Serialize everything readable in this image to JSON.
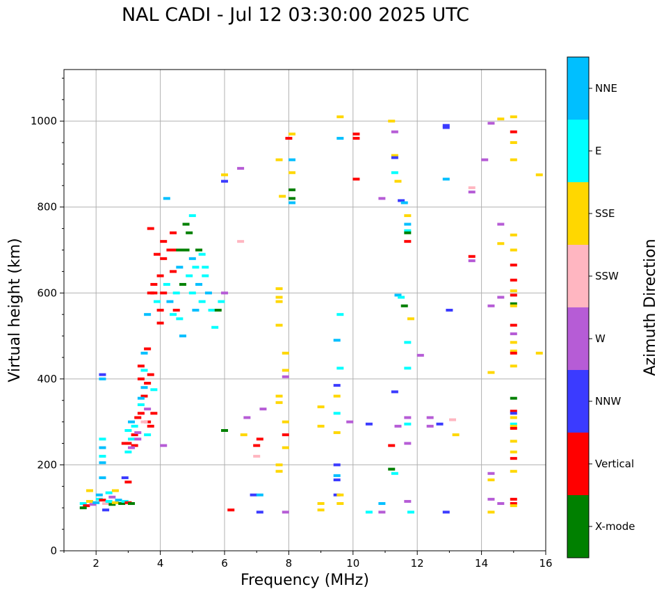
{
  "chart_data": {
    "type": "scatter",
    "title": "NAL CADI - Jul 12 03:30:00 2025 UTC",
    "xlabel": "Frequency (MHz)",
    "ylabel": "Virtual height (km)",
    "xlim": [
      1,
      16
    ],
    "ylim": [
      0,
      1120
    ],
    "xticks": [
      2,
      4,
      6,
      8,
      10,
      12,
      14,
      16
    ],
    "yticks": [
      0,
      200,
      400,
      600,
      800,
      1000
    ],
    "grid": true,
    "colorbar": {
      "title": "Azimuth Direction",
      "categories": [
        {
          "name": "X-mode",
          "color": "#008000"
        },
        {
          "name": "Vertical",
          "color": "#ff0000"
        },
        {
          "name": "NNW",
          "color": "#3b3bff"
        },
        {
          "name": "W",
          "color": "#b65cd6"
        },
        {
          "name": "SSW",
          "color": "#ffb6c1"
        },
        {
          "name": "SSE",
          "color": "#ffd700"
        },
        {
          "name": "E",
          "color": "#00ffff"
        },
        {
          "name": "NNE",
          "color": "#00bfff"
        }
      ]
    },
    "points": [
      [
        1.6,
        110,
        "E"
      ],
      [
        1.7,
        105,
        "Vertical"
      ],
      [
        1.8,
        115,
        "SSE"
      ],
      [
        1.9,
        108,
        "W"
      ],
      [
        2.0,
        112,
        "NNE"
      ],
      [
        2.1,
        120,
        "E"
      ],
      [
        2.2,
        118,
        "Vertical"
      ],
      [
        2.3,
        110,
        "SSW"
      ],
      [
        2.4,
        115,
        "E"
      ],
      [
        2.5,
        108,
        "X-mode"
      ],
      [
        2.6,
        112,
        "SSE"
      ],
      [
        2.7,
        118,
        "NNE"
      ],
      [
        2.8,
        110,
        "X-mode"
      ],
      [
        2.9,
        115,
        "E"
      ],
      [
        3.0,
        112,
        "Vertical"
      ],
      [
        3.1,
        110,
        "X-mode"
      ],
      [
        1.6,
        100,
        "X-mode"
      ],
      [
        1.8,
        140,
        "SSE"
      ],
      [
        2.1,
        130,
        "NNE"
      ],
      [
        2.4,
        135,
        "E"
      ],
      [
        2.6,
        140,
        "SSE"
      ],
      [
        2.9,
        170,
        "NNW"
      ],
      [
        3.0,
        160,
        "Vertical"
      ],
      [
        2.2,
        170,
        "NNE"
      ],
      [
        2.3,
        95,
        "NNW"
      ],
      [
        2.5,
        125,
        "W"
      ],
      [
        2.2,
        220,
        "E"
      ],
      [
        2.2,
        240,
        "NNE"
      ],
      [
        2.2,
        260,
        "E"
      ],
      [
        2.2,
        400,
        "NNE"
      ],
      [
        2.2,
        410,
        "NNW"
      ],
      [
        2.2,
        205,
        "NNE"
      ],
      [
        3.0,
        250,
        "Vertical"
      ],
      [
        3.0,
        280,
        "E"
      ],
      [
        3.1,
        260,
        "E"
      ],
      [
        3.1,
        300,
        "NNE"
      ],
      [
        3.2,
        270,
        "Vertical"
      ],
      [
        3.2,
        290,
        "E"
      ],
      [
        3.3,
        310,
        "Vertical"
      ],
      [
        3.3,
        260,
        "W"
      ],
      [
        3.4,
        320,
        "Vertical"
      ],
      [
        3.4,
        340,
        "E"
      ],
      [
        3.5,
        360,
        "Vertical"
      ],
      [
        3.5,
        380,
        "NNE"
      ],
      [
        3.4,
        400,
        "Vertical"
      ],
      [
        3.5,
        420,
        "E"
      ],
      [
        3.4,
        430,
        "Vertical"
      ],
      [
        3.5,
        460,
        "NNE"
      ],
      [
        3.6,
        470,
        "Vertical"
      ],
      [
        3.6,
        300,
        "Vertical"
      ],
      [
        3.7,
        290,
        "Vertical"
      ],
      [
        3.8,
        320,
        "Vertical"
      ],
      [
        3.6,
        270,
        "E"
      ],
      [
        3.2,
        245,
        "Vertical"
      ],
      [
        3.3,
        275,
        "W"
      ],
      [
        3.1,
        240,
        "W"
      ],
      [
        2.9,
        250,
        "Vertical"
      ],
      [
        3.0,
        230,
        "E"
      ],
      [
        3.5,
        300,
        "SSW"
      ],
      [
        3.6,
        330,
        "W"
      ],
      [
        3.4,
        355,
        "NNE"
      ],
      [
        3.6,
        390,
        "Vertical"
      ],
      [
        3.7,
        410,
        "Vertical"
      ],
      [
        3.8,
        375,
        "E"
      ],
      [
        4.1,
        245,
        "W"
      ],
      [
        3.6,
        550,
        "NNE"
      ],
      [
        3.7,
        600,
        "Vertical"
      ],
      [
        3.8,
        620,
        "Vertical"
      ],
      [
        3.9,
        580,
        "E"
      ],
      [
        4.0,
        560,
        "Vertical"
      ],
      [
        4.0,
        640,
        "Vertical"
      ],
      [
        4.1,
        600,
        "Vertical"
      ],
      [
        4.1,
        680,
        "Vertical"
      ],
      [
        4.2,
        620,
        "E"
      ],
      [
        4.3,
        580,
        "NNE"
      ],
      [
        4.4,
        650,
        "Vertical"
      ],
      [
        4.5,
        700,
        "Vertical"
      ],
      [
        4.5,
        600,
        "E"
      ],
      [
        4.6,
        660,
        "NNE"
      ],
      [
        4.7,
        620,
        "X-mode"
      ],
      [
        4.8,
        700,
        "X-mode"
      ],
      [
        4.9,
        640,
        "E"
      ],
      [
        5.0,
        680,
        "NNE"
      ],
      [
        5.0,
        600,
        "E"
      ],
      [
        5.1,
        660,
        "E"
      ],
      [
        5.2,
        620,
        "NNE"
      ],
      [
        5.3,
        580,
        "E"
      ],
      [
        5.4,
        640,
        "E"
      ],
      [
        5.5,
        600,
        "NNE"
      ],
      [
        5.6,
        560,
        "E"
      ],
      [
        5.7,
        520,
        "E"
      ],
      [
        4.8,
        760,
        "X-mode"
      ],
      [
        4.9,
        740,
        "X-mode"
      ],
      [
        5.0,
        780,
        "E"
      ],
      [
        4.6,
        540,
        "E"
      ],
      [
        4.7,
        500,
        "NNE"
      ],
      [
        3.7,
        750,
        "Vertical"
      ],
      [
        4.1,
        720,
        "Vertical"
      ],
      [
        4.2,
        820,
        "NNE"
      ],
      [
        4.4,
        740,
        "Vertical"
      ],
      [
        3.9,
        690,
        "Vertical"
      ],
      [
        4.0,
        530,
        "Vertical"
      ],
      [
        4.3,
        700,
        "Vertical"
      ],
      [
        4.6,
        700,
        "X-mode"
      ],
      [
        4.5,
        560,
        "Vertical"
      ],
      [
        5.2,
        700,
        "X-mode"
      ],
      [
        5.3,
        690,
        "E"
      ],
      [
        5.4,
        660,
        "E"
      ],
      [
        5.1,
        560,
        "NNE"
      ],
      [
        5.8,
        560,
        "X-mode"
      ],
      [
        5.9,
        580,
        "E"
      ],
      [
        6.0,
        600,
        "W"
      ],
      [
        6.5,
        720,
        "SSW"
      ],
      [
        4.4,
        550,
        "E"
      ],
      [
        3.8,
        600,
        "Vertical"
      ],
      [
        6.0,
        860,
        "NNW"
      ],
      [
        6.0,
        875,
        "SSE"
      ],
      [
        6.5,
        890,
        "W"
      ],
      [
        6.0,
        280,
        "X-mode"
      ],
      [
        6.2,
        95,
        "Vertical"
      ],
      [
        6.6,
        270,
        "SSE"
      ],
      [
        6.7,
        310,
        "W"
      ],
      [
        6.9,
        130,
        "NNW"
      ],
      [
        7.0,
        245,
        "Vertical"
      ],
      [
        7.1,
        130,
        "NNE"
      ],
      [
        7.1,
        260,
        "Vertical"
      ],
      [
        7.2,
        330,
        "W"
      ],
      [
        7.1,
        90,
        "NNW"
      ],
      [
        7.0,
        220,
        "SSW"
      ],
      [
        7.7,
        910,
        "SSE"
      ],
      [
        7.8,
        825,
        "SSE"
      ],
      [
        8.1,
        810,
        "NNE"
      ],
      [
        8.1,
        820,
        "X-mode"
      ],
      [
        8.1,
        840,
        "X-mode"
      ],
      [
        8.1,
        910,
        "NNE"
      ],
      [
        8.1,
        880,
        "SSE"
      ],
      [
        8.1,
        970,
        "SSE"
      ],
      [
        8.0,
        960,
        "Vertical"
      ],
      [
        7.7,
        610,
        "SSE"
      ],
      [
        7.7,
        590,
        "SSE"
      ],
      [
        7.7,
        580,
        "SSE"
      ],
      [
        7.7,
        525,
        "SSE"
      ],
      [
        7.7,
        360,
        "SSE"
      ],
      [
        7.7,
        345,
        "SSE"
      ],
      [
        7.7,
        200,
        "SSE"
      ],
      [
        7.7,
        185,
        "SSE"
      ],
      [
        7.9,
        300,
        "SSE"
      ],
      [
        7.9,
        270,
        "Vertical"
      ],
      [
        7.9,
        240,
        "SSE"
      ],
      [
        7.9,
        460,
        "SSE"
      ],
      [
        7.9,
        420,
        "SSE"
      ],
      [
        7.9,
        405,
        "W"
      ],
      [
        7.9,
        90,
        "W"
      ],
      [
        9.0,
        335,
        "SSE"
      ],
      [
        9.0,
        290,
        "SSE"
      ],
      [
        9.0,
        110,
        "SSE"
      ],
      [
        9.0,
        95,
        "SSE"
      ],
      [
        9.5,
        490,
        "NNE"
      ],
      [
        9.6,
        550,
        "E"
      ],
      [
        9.5,
        385,
        "NNW"
      ],
      [
        9.5,
        360,
        "SSE"
      ],
      [
        9.5,
        320,
        "E"
      ],
      [
        9.5,
        275,
        "SSE"
      ],
      [
        9.5,
        200,
        "NNW"
      ],
      [
        9.5,
        175,
        "NNE"
      ],
      [
        9.5,
        165,
        "NNW"
      ],
      [
        9.5,
        130,
        "NNW"
      ],
      [
        9.6,
        110,
        "SSE"
      ],
      [
        9.6,
        1010,
        "SSE"
      ],
      [
        9.6,
        960,
        "NNE"
      ],
      [
        9.6,
        425,
        "E"
      ],
      [
        9.6,
        130,
        "SSE"
      ],
      [
        9.9,
        300,
        "W"
      ],
      [
        10.1,
        970,
        "Vertical"
      ],
      [
        10.1,
        960,
        "Vertical"
      ],
      [
        10.1,
        865,
        "Vertical"
      ],
      [
        10.5,
        295,
        "NNW"
      ],
      [
        10.5,
        90,
        "E"
      ],
      [
        10.9,
        820,
        "W"
      ],
      [
        10.9,
        110,
        "NNE"
      ],
      [
        10.9,
        90,
        "W"
      ],
      [
        11.2,
        1000,
        "SSE"
      ],
      [
        11.3,
        975,
        "W"
      ],
      [
        11.3,
        920,
        "SSE"
      ],
      [
        11.3,
        915,
        "NNW"
      ],
      [
        11.3,
        880,
        "E"
      ],
      [
        11.4,
        860,
        "SSE"
      ],
      [
        11.5,
        815,
        "NNW"
      ],
      [
        11.6,
        810,
        "NNE"
      ],
      [
        11.7,
        780,
        "SSE"
      ],
      [
        11.7,
        760,
        "NNE"
      ],
      [
        11.7,
        745,
        "E"
      ],
      [
        11.7,
        720,
        "Vertical"
      ],
      [
        11.7,
        740,
        "X-mode"
      ],
      [
        11.4,
        595,
        "NNE"
      ],
      [
        11.5,
        590,
        "E"
      ],
      [
        11.6,
        570,
        "X-mode"
      ],
      [
        11.8,
        540,
        "SSE"
      ],
      [
        11.7,
        485,
        "E"
      ],
      [
        11.7,
        425,
        "E"
      ],
      [
        11.3,
        370,
        "NNW"
      ],
      [
        11.7,
        310,
        "W"
      ],
      [
        11.4,
        290,
        "W"
      ],
      [
        11.7,
        295,
        "E"
      ],
      [
        11.2,
        245,
        "Vertical"
      ],
      [
        11.7,
        250,
        "W"
      ],
      [
        11.2,
        190,
        "X-mode"
      ],
      [
        11.3,
        180,
        "E"
      ],
      [
        11.7,
        115,
        "W"
      ],
      [
        11.8,
        90,
        "E"
      ],
      [
        12.1,
        455,
        "W"
      ],
      [
        12.4,
        310,
        "W"
      ],
      [
        12.4,
        290,
        "W"
      ],
      [
        12.7,
        295,
        "NNW"
      ],
      [
        13.1,
        305,
        "SSW"
      ],
      [
        13.2,
        270,
        "SSE"
      ],
      [
        13.0,
        560,
        "NNW"
      ],
      [
        12.9,
        990,
        "NNW"
      ],
      [
        12.9,
        985,
        "NNW"
      ],
      [
        12.9,
        865,
        "NNE"
      ],
      [
        12.9,
        90,
        "NNW"
      ],
      [
        13.7,
        845,
        "SSW"
      ],
      [
        13.7,
        835,
        "W"
      ],
      [
        13.7,
        685,
        "Vertical"
      ],
      [
        13.7,
        675,
        "W"
      ],
      [
        14.1,
        910,
        "W"
      ],
      [
        14.3,
        995,
        "W"
      ],
      [
        14.6,
        1005,
        "SSE"
      ],
      [
        14.6,
        760,
        "W"
      ],
      [
        14.6,
        715,
        "SSE"
      ],
      [
        14.6,
        590,
        "W"
      ],
      [
        14.3,
        570,
        "W"
      ],
      [
        14.3,
        415,
        "SSE"
      ],
      [
        14.3,
        180,
        "W"
      ],
      [
        14.3,
        165,
        "SSE"
      ],
      [
        14.3,
        120,
        "W"
      ],
      [
        14.3,
        90,
        "SSE"
      ],
      [
        14.6,
        110,
        "W"
      ],
      [
        15.0,
        1010,
        "SSE"
      ],
      [
        15.0,
        975,
        "Vertical"
      ],
      [
        15.0,
        950,
        "SSE"
      ],
      [
        15.0,
        910,
        "SSE"
      ],
      [
        15.0,
        735,
        "SSE"
      ],
      [
        15.0,
        700,
        "SSE"
      ],
      [
        15.0,
        665,
        "Vertical"
      ],
      [
        15.0,
        630,
        "Vertical"
      ],
      [
        15.0,
        605,
        "SSE"
      ],
      [
        15.0,
        595,
        "Vertical"
      ],
      [
        15.0,
        575,
        "X-mode"
      ],
      [
        15.0,
        570,
        "SSE"
      ],
      [
        15.0,
        525,
        "Vertical"
      ],
      [
        15.0,
        505,
        "W"
      ],
      [
        15.0,
        485,
        "SSE"
      ],
      [
        15.0,
        465,
        "SSE"
      ],
      [
        15.0,
        460,
        "Vertical"
      ],
      [
        15.0,
        430,
        "SSE"
      ],
      [
        15.0,
        355,
        "X-mode"
      ],
      [
        15.0,
        325,
        "Vertical"
      ],
      [
        15.0,
        320,
        "NNW"
      ],
      [
        15.0,
        310,
        "SSE"
      ],
      [
        15.0,
        295,
        "E"
      ],
      [
        15.0,
        290,
        "SSE"
      ],
      [
        15.0,
        285,
        "Vertical"
      ],
      [
        15.0,
        255,
        "SSE"
      ],
      [
        15.0,
        230,
        "SSE"
      ],
      [
        15.0,
        215,
        "Vertical"
      ],
      [
        15.0,
        185,
        "SSE"
      ],
      [
        15.0,
        120,
        "Vertical"
      ],
      [
        15.0,
        110,
        "Vertical"
      ],
      [
        15.0,
        105,
        "SSE"
      ],
      [
        15.8,
        875,
        "SSE"
      ],
      [
        15.8,
        460,
        "SSE"
      ]
    ]
  }
}
